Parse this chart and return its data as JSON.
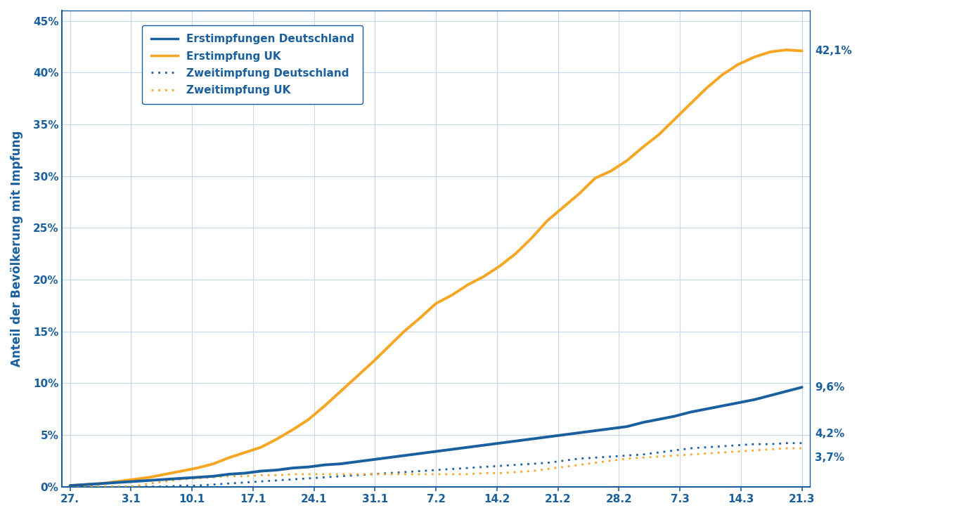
{
  "ylabel": "Anteil der Bevölkerung mit Impfung",
  "background_color": "#ffffff",
  "plot_bg_color": "#ffffff",
  "grid_color": "#c8d8e8",
  "axis_color": "#1a5f9e",
  "xtick_labels": [
    "27.",
    "3.1",
    "10.1",
    "17.1",
    "24.1",
    "31.1",
    "7.2",
    "14.2",
    "21.2",
    "28.2",
    "7.3",
    "14.3",
    "21.3"
  ],
  "ylim": [
    0,
    0.46
  ],
  "color_de": "#1a5f9e",
  "color_uk": "#f5a623",
  "end_labels": {
    "uk_erst": "42,1%",
    "de_erst": "9,6%",
    "de_zweit": "4,2%",
    "uk_zweit": "3,7%"
  },
  "legend_entries": [
    "Erstimpfungen Deutschland",
    "Erstimpfung UK",
    "Zweitimpfung Deutschland",
    "Zweitimpfung UK"
  ],
  "de_erst": [
    0.001,
    0.002,
    0.003,
    0.004,
    0.005,
    0.006,
    0.007,
    0.008,
    0.009,
    0.01,
    0.012,
    0.013,
    0.015,
    0.016,
    0.018,
    0.019,
    0.021,
    0.022,
    0.024,
    0.026,
    0.028,
    0.03,
    0.032,
    0.034,
    0.036,
    0.038,
    0.04,
    0.042,
    0.044,
    0.046,
    0.048,
    0.05,
    0.052,
    0.054,
    0.056,
    0.058,
    0.062,
    0.065,
    0.068,
    0.072,
    0.075,
    0.078,
    0.081,
    0.084,
    0.088,
    0.092,
    0.096
  ],
  "uk_erst": [
    0.001,
    0.002,
    0.003,
    0.005,
    0.007,
    0.009,
    0.012,
    0.015,
    0.018,
    0.022,
    0.028,
    0.033,
    0.038,
    0.046,
    0.055,
    0.065,
    0.078,
    0.092,
    0.106,
    0.12,
    0.135,
    0.15,
    0.163,
    0.177,
    0.185,
    0.195,
    0.203,
    0.213,
    0.225,
    0.24,
    0.257,
    0.27,
    0.283,
    0.298,
    0.305,
    0.315,
    0.328,
    0.34,
    0.355,
    0.37,
    0.385,
    0.398,
    0.408,
    0.415,
    0.42,
    0.422,
    0.421
  ],
  "de_zweit": [
    0.0,
    0.0,
    0.0,
    0.0,
    0.0,
    0.0,
    0.0,
    0.001,
    0.001,
    0.002,
    0.003,
    0.004,
    0.005,
    0.006,
    0.007,
    0.008,
    0.009,
    0.01,
    0.011,
    0.012,
    0.013,
    0.014,
    0.015,
    0.016,
    0.017,
    0.018,
    0.019,
    0.02,
    0.021,
    0.022,
    0.023,
    0.025,
    0.027,
    0.028,
    0.029,
    0.03,
    0.031,
    0.033,
    0.035,
    0.037,
    0.038,
    0.039,
    0.04,
    0.041,
    0.041,
    0.042,
    0.042
  ],
  "uk_zweit": [
    0.0,
    0.0,
    0.0,
    0.0,
    0.0,
    0.003,
    0.005,
    0.007,
    0.008,
    0.009,
    0.01,
    0.01,
    0.011,
    0.011,
    0.012,
    0.012,
    0.012,
    0.012,
    0.012,
    0.012,
    0.012,
    0.012,
    0.012,
    0.012,
    0.012,
    0.012,
    0.013,
    0.013,
    0.014,
    0.015,
    0.017,
    0.019,
    0.021,
    0.023,
    0.025,
    0.027,
    0.028,
    0.029,
    0.03,
    0.031,
    0.032,
    0.033,
    0.034,
    0.035,
    0.036,
    0.037,
    0.037
  ]
}
